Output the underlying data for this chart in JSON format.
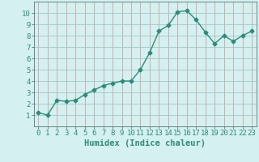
{
  "x": [
    0,
    1,
    2,
    3,
    4,
    5,
    6,
    7,
    8,
    9,
    10,
    11,
    12,
    13,
    14,
    15,
    16,
    17,
    18,
    19,
    20,
    21,
    22,
    23
  ],
  "y": [
    1.2,
    1.0,
    2.3,
    2.2,
    2.3,
    2.8,
    3.2,
    3.6,
    3.8,
    4.0,
    4.0,
    5.0,
    6.5,
    8.4,
    8.9,
    10.1,
    10.2,
    9.4,
    8.3,
    7.3,
    8.0,
    7.5,
    8.0,
    8.4
  ],
  "line_color": "#2e8b7a",
  "marker": "D",
  "marker_size": 2.5,
  "bg_color": "#d4f0f0",
  "grid_color": "#c0c0c0",
  "grid_color2": "#e0b0b0",
  "xlabel": "Humidex (Indice chaleur)",
  "xlabel_fontsize": 7.5,
  "xlim": [
    -0.5,
    23.5
  ],
  "ylim": [
    0,
    11
  ],
  "yticks": [
    1,
    2,
    3,
    4,
    5,
    6,
    7,
    8,
    9,
    10
  ],
  "xticks": [
    0,
    1,
    2,
    3,
    4,
    5,
    6,
    7,
    8,
    9,
    10,
    11,
    12,
    13,
    14,
    15,
    16,
    17,
    18,
    19,
    20,
    21,
    22,
    23
  ],
  "tick_label_size": 6.5
}
